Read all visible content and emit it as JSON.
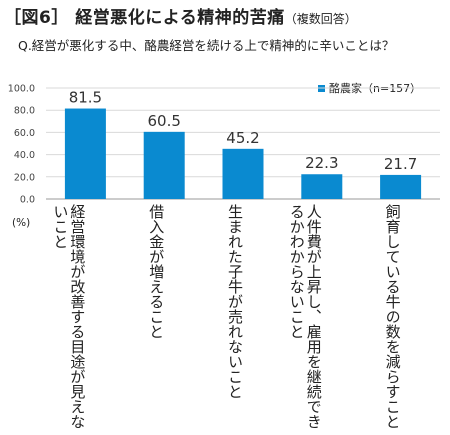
{
  "figure": {
    "title": "［図6］ 経営悪化による精神的苦痛",
    "title_note": "（複数回答）",
    "question": "Q.経営が悪化する中、酪農経営を続ける上で精神的に辛いことは？"
  },
  "chart_data": {
    "type": "bar",
    "categories": [
      "経営環境が改善する目途が見えないこと",
      "借入金が増えること",
      "生まれた子牛が売れないこと",
      "人件費が上昇し、雇用を継続できるかわからないこと",
      "飼育している牛の数を減らすこと"
    ],
    "series": [
      {
        "name": "酪農家（n=157）",
        "values": [
          81.5,
          60.5,
          45.2,
          22.3,
          21.7
        ]
      }
    ],
    "data_labels": [
      "81.5",
      "60.5",
      "45.2",
      "22.3",
      "21.7"
    ],
    "ylim": [
      0,
      100
    ],
    "y_ticks": [
      "0.0",
      "20.0",
      "40.0",
      "60.0",
      "80.0",
      "100.0"
    ],
    "ylabel": "(%)",
    "grid": true,
    "legend_position": "top-right",
    "bar_color": "#0a8ad0"
  }
}
